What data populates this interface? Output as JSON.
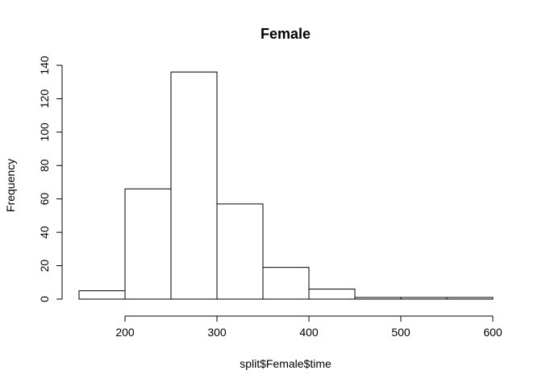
{
  "chart_data": {
    "type": "bar",
    "title": "Female",
    "xlabel": "split$Female$time",
    "ylabel": "Frequency",
    "bin_edges": [
      150,
      200,
      250,
      300,
      350,
      400,
      450,
      500,
      550,
      600
    ],
    "values": [
      5,
      66,
      136,
      57,
      19,
      6,
      1,
      1,
      1
    ],
    "xlim": [
      150,
      600
    ],
    "ylim": [
      0,
      140
    ],
    "x_ticks": [
      200,
      300,
      400,
      500,
      600
    ],
    "y_ticks": [
      0,
      20,
      40,
      60,
      80,
      100,
      120,
      140
    ],
    "grid": false,
    "colors": {
      "bar_fill": "#ffffff",
      "bar_stroke": "#000000"
    }
  }
}
